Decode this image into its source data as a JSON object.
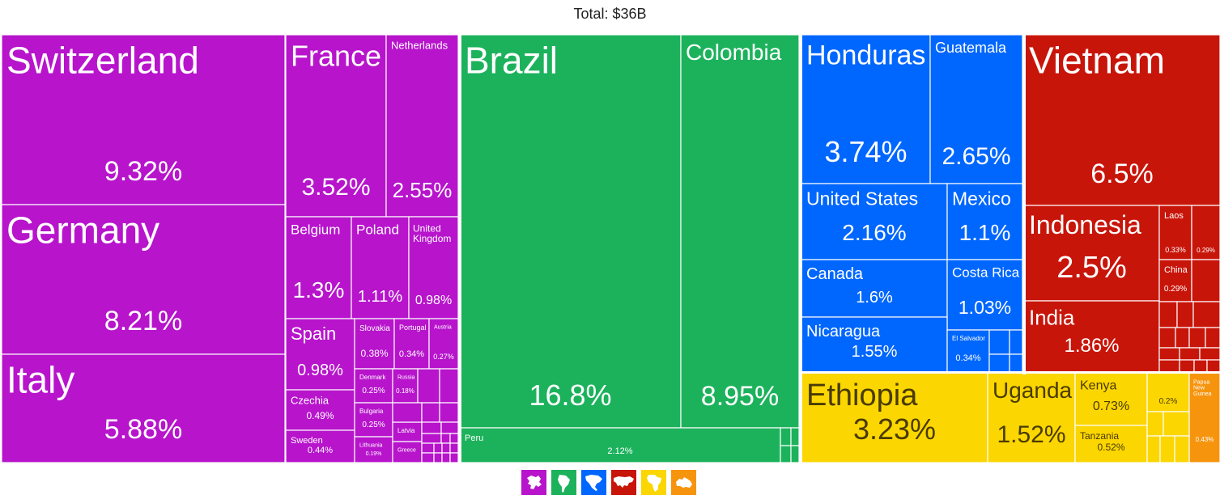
{
  "title": "Total: $36B",
  "chart_data": {
    "type": "treemap",
    "title": "Total: $36B",
    "regions": [
      {
        "name": "Europe",
        "color": "#b714cc"
      },
      {
        "name": "South America",
        "color": "#1cb25c"
      },
      {
        "name": "North America",
        "color": "#0067fe"
      },
      {
        "name": "Asia",
        "color": "#c8150a"
      },
      {
        "name": "Africa",
        "color": "#fbd600"
      },
      {
        "name": "Oceania",
        "color": "#f7940d"
      }
    ],
    "items": [
      {
        "label": "Switzerland",
        "value": "9.32%",
        "region": "Europe"
      },
      {
        "label": "Germany",
        "value": "8.21%",
        "region": "Europe"
      },
      {
        "label": "Italy",
        "value": "5.88%",
        "region": "Europe"
      },
      {
        "label": "France",
        "value": "3.52%",
        "region": "Europe"
      },
      {
        "label": "Netherlands",
        "value": "2.55%",
        "region": "Europe"
      },
      {
        "label": "Belgium",
        "value": "1.3%",
        "region": "Europe"
      },
      {
        "label": "Poland",
        "value": "1.11%",
        "region": "Europe"
      },
      {
        "label": "United Kingdom",
        "value": "0.98%",
        "region": "Europe"
      },
      {
        "label": "Spain",
        "value": "0.98%",
        "region": "Europe"
      },
      {
        "label": "Slovakia",
        "value": "0.38%",
        "region": "Europe"
      },
      {
        "label": "Portugal",
        "value": "0.34%",
        "region": "Europe"
      },
      {
        "label": "Austria",
        "value": "0.27%",
        "region": "Europe"
      },
      {
        "label": "Czechia",
        "value": "0.49%",
        "region": "Europe"
      },
      {
        "label": "Denmark",
        "value": "0.25%",
        "region": "Europe"
      },
      {
        "label": "Russia",
        "value": "0.18%",
        "region": "Europe"
      },
      {
        "label": "Bulgaria",
        "value": "0.25%",
        "region": "Europe"
      },
      {
        "label": "Sweden",
        "value": "0.44%",
        "region": "Europe"
      },
      {
        "label": "Lithuania",
        "value": "0.19%",
        "region": "Europe"
      },
      {
        "label": "Latvia",
        "value": "",
        "region": "Europe"
      },
      {
        "label": "Greece",
        "value": "",
        "region": "Europe"
      },
      {
        "label": "Brazil",
        "value": "16.8%",
        "region": "South America"
      },
      {
        "label": "Colombia",
        "value": "8.95%",
        "region": "South America"
      },
      {
        "label": "Peru",
        "value": "2.12%",
        "region": "South America"
      },
      {
        "label": "Honduras",
        "value": "3.74%",
        "region": "North America"
      },
      {
        "label": "Guatemala",
        "value": "2.65%",
        "region": "North America"
      },
      {
        "label": "United States",
        "value": "2.16%",
        "region": "North America"
      },
      {
        "label": "Mexico",
        "value": "1.1%",
        "region": "North America"
      },
      {
        "label": "Canada",
        "value": "1.6%",
        "region": "North America"
      },
      {
        "label": "Costa Rica",
        "value": "1.03%",
        "region": "North America"
      },
      {
        "label": "Nicaragua",
        "value": "1.55%",
        "region": "North America"
      },
      {
        "label": "El Salvador",
        "value": "0.34%",
        "region": "North America"
      },
      {
        "label": "Vietnam",
        "value": "6.5%",
        "region": "Asia"
      },
      {
        "label": "Indonesia",
        "value": "2.5%",
        "region": "Asia"
      },
      {
        "label": "Laos",
        "value": "0.33%",
        "region": "Asia"
      },
      {
        "label": "",
        "value": "0.29%",
        "region": "Asia"
      },
      {
        "label": "China",
        "value": "0.29%",
        "region": "Asia"
      },
      {
        "label": "India",
        "value": "1.86%",
        "region": "Asia"
      },
      {
        "label": "Ethiopia",
        "value": "3.23%",
        "region": "Africa"
      },
      {
        "label": "Uganda",
        "value": "1.52%",
        "region": "Africa"
      },
      {
        "label": "Kenya",
        "value": "0.73%",
        "region": "Africa"
      },
      {
        "label": "Tanzania",
        "value": "0.52%",
        "region": "Africa"
      },
      {
        "label": "",
        "value": "0.2%",
        "region": "Africa"
      },
      {
        "label": "Papua New Guinea",
        "value": "0.43%",
        "region": "Oceania"
      }
    ]
  },
  "legend": [
    {
      "icon": "europe-icon",
      "color": "#b714cc"
    },
    {
      "icon": "south-america-icon",
      "color": "#1cb25c"
    },
    {
      "icon": "north-america-icon",
      "color": "#0067fe"
    },
    {
      "icon": "asia-icon",
      "color": "#c8150a"
    },
    {
      "icon": "africa-icon",
      "color": "#fbd600"
    },
    {
      "icon": "oceania-icon",
      "color": "#f7940d"
    }
  ]
}
